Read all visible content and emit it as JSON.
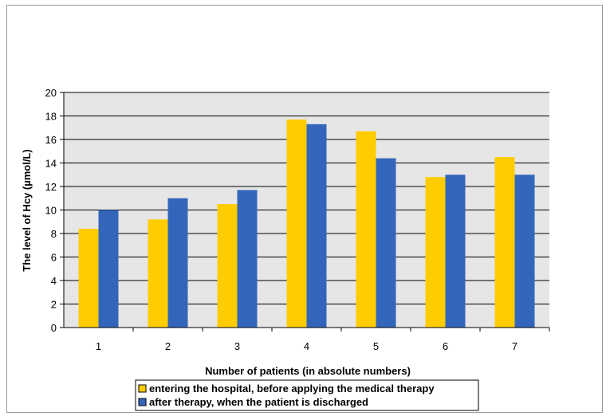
{
  "chart_data": {
    "type": "bar",
    "categories": [
      "1",
      "2",
      "3",
      "4",
      "5",
      "6",
      "7"
    ],
    "series": [
      {
        "name": "entering the hospital, before applying the medical therapy",
        "values": [
          8.4,
          9.2,
          10.5,
          17.7,
          16.7,
          12.8,
          14.5
        ],
        "color": "#ffcc00"
      },
      {
        "name": "after therapy, when the patient is discharged",
        "values": [
          10.0,
          11.0,
          11.7,
          17.3,
          14.4,
          13.0,
          13.0
        ],
        "color": "#3366bb"
      }
    ],
    "xlabel": "Number of patients (in absolute numbers)",
    "ylabel": "The level of Hcy (µmol/L)",
    "ylim": [
      0,
      20
    ],
    "yticks": [
      "0",
      "2",
      "4",
      "6",
      "8",
      "10",
      "12",
      "14",
      "16",
      "18",
      "20"
    ],
    "grid": true,
    "plot_background": "#e6e6e6",
    "legend_position": "bottom"
  }
}
